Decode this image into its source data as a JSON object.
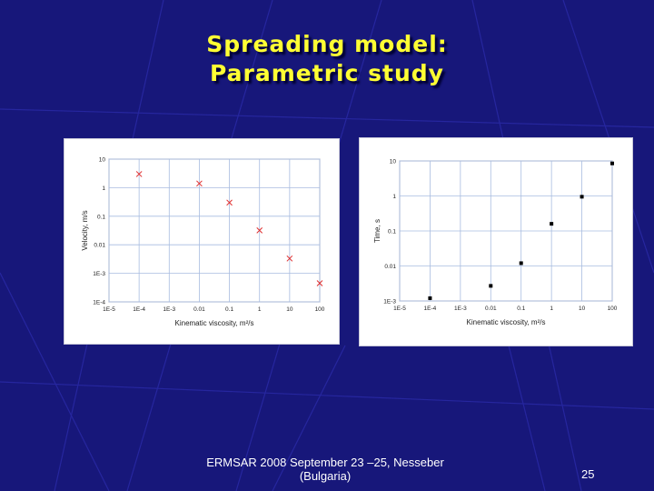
{
  "slide": {
    "title_line1": "Spreading model:",
    "title_line2": "Parametric study",
    "footer_line1": "ERMSAR 2008  September 23 –25, Nesseber",
    "footer_line2": "(Bulgaria)",
    "page_number": "25"
  },
  "colors": {
    "background": "#17177a",
    "title": "#ffff33",
    "grid": "#a8bce0",
    "left_marker": "#e03030",
    "right_marker": "#000000"
  },
  "chart_data": [
    {
      "type": "scatter",
      "title": "",
      "xlabel": "Kinematic viscosity, m²/s",
      "ylabel": "Velocity, m/s",
      "xscale": "log",
      "yscale": "log",
      "xlim": [
        1e-05,
        100
      ],
      "ylim": [
        0.0001,
        10
      ],
      "xticks": [
        "1E-5",
        "1E-4",
        "1E-3",
        "0.01",
        "0.1",
        "1",
        "10",
        "100"
      ],
      "yticks": [
        "1E-4",
        "1E-3",
        "0.01",
        "0.1",
        "1",
        "10"
      ],
      "grid": true,
      "marker": "x",
      "points": [
        {
          "x": 0.0001,
          "y": 3
        },
        {
          "x": 0.01,
          "y": 1.4
        },
        {
          "x": 0.1,
          "y": 0.3
        },
        {
          "x": 1,
          "y": 0.032
        },
        {
          "x": 10,
          "y": 0.0033
        },
        {
          "x": 100,
          "y": 0.00045
        }
      ]
    },
    {
      "type": "scatter",
      "title": "",
      "xlabel": "Kinematic viscosity, m²/s",
      "ylabel": "Time, s",
      "xscale": "log",
      "yscale": "log",
      "xlim": [
        1e-05,
        100
      ],
      "ylim": [
        0.001,
        10
      ],
      "xticks": [
        "1E-5",
        "1E-4",
        "1E-3",
        "0.01",
        "0.1",
        "1",
        "10",
        "100"
      ],
      "yticks": [
        "1E-3",
        "0.01",
        "0.1",
        "1",
        "10"
      ],
      "grid": true,
      "marker": "square",
      "points": [
        {
          "x": 0.0001,
          "y": 0.0012
        },
        {
          "x": 0.01,
          "y": 0.0027
        },
        {
          "x": 0.1,
          "y": 0.012
        },
        {
          "x": 1,
          "y": 0.16
        },
        {
          "x": 10,
          "y": 0.95
        },
        {
          "x": 100,
          "y": 8.5
        }
      ]
    }
  ]
}
